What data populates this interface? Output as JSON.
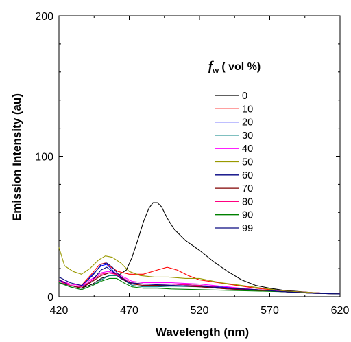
{
  "chart_data": {
    "type": "line",
    "xlabel": "Wavelength (nm)",
    "ylabel": "Emission Intensity (au)",
    "xlim": [
      420,
      620
    ],
    "ylim": [
      0,
      200
    ],
    "x_ticks": [
      420,
      470,
      520,
      570,
      620
    ],
    "y_ticks": [
      0,
      100,
      200
    ],
    "grid": false,
    "legend_position": "right",
    "legend": {
      "title_f": "f",
      "title_sub": "w",
      "title_rest": " ( vol %)"
    },
    "series": [
      {
        "name": "0",
        "color": "#000000",
        "points": [
          [
            420,
            10
          ],
          [
            428,
            8
          ],
          [
            436,
            6
          ],
          [
            444,
            9
          ],
          [
            450,
            13
          ],
          [
            456,
            15
          ],
          [
            462,
            15
          ],
          [
            468,
            19
          ],
          [
            472,
            28
          ],
          [
            476,
            40
          ],
          [
            480,
            53
          ],
          [
            484,
            63
          ],
          [
            487,
            67
          ],
          [
            490,
            67
          ],
          [
            493,
            64
          ],
          [
            497,
            56
          ],
          [
            502,
            48
          ],
          [
            510,
            40
          ],
          [
            520,
            33
          ],
          [
            530,
            25
          ],
          [
            540,
            18
          ],
          [
            550,
            12
          ],
          [
            560,
            8
          ],
          [
            570,
            6
          ],
          [
            580,
            4.5
          ],
          [
            600,
            3
          ],
          [
            620,
            2
          ]
        ]
      },
      {
        "name": "10",
        "color": "#ff0000",
        "points": [
          [
            420,
            12
          ],
          [
            428,
            9
          ],
          [
            436,
            8
          ],
          [
            444,
            17
          ],
          [
            449,
            23
          ],
          [
            453,
            24
          ],
          [
            457,
            21
          ],
          [
            462,
            18
          ],
          [
            470,
            16
          ],
          [
            480,
            16
          ],
          [
            490,
            19
          ],
          [
            497,
            21
          ],
          [
            504,
            19
          ],
          [
            512,
            15
          ],
          [
            520,
            12
          ],
          [
            540,
            9
          ],
          [
            560,
            6
          ],
          [
            580,
            4
          ],
          [
            600,
            3
          ],
          [
            620,
            2
          ]
        ]
      },
      {
        "name": "20",
        "color": "#0000ff",
        "points": [
          [
            420,
            12
          ],
          [
            428,
            8
          ],
          [
            436,
            7
          ],
          [
            444,
            16
          ],
          [
            450,
            22
          ],
          [
            454,
            23
          ],
          [
            458,
            19
          ],
          [
            464,
            13
          ],
          [
            470,
            10
          ],
          [
            480,
            9
          ],
          [
            490,
            9
          ],
          [
            500,
            9
          ],
          [
            520,
            8
          ],
          [
            540,
            6.5
          ],
          [
            560,
            5
          ],
          [
            580,
            3.5
          ],
          [
            600,
            3
          ],
          [
            620,
            2
          ]
        ]
      },
      {
        "name": "30",
        "color": "#008080",
        "points": [
          [
            420,
            10
          ],
          [
            428,
            7
          ],
          [
            436,
            5
          ],
          [
            444,
            8
          ],
          [
            450,
            12
          ],
          [
            456,
            15
          ],
          [
            461,
            15
          ],
          [
            466,
            12
          ],
          [
            472,
            8
          ],
          [
            480,
            7
          ],
          [
            490,
            7
          ],
          [
            500,
            7.5
          ],
          [
            520,
            7
          ],
          [
            540,
            5.5
          ],
          [
            560,
            4.5
          ],
          [
            580,
            3.5
          ],
          [
            600,
            2.5
          ],
          [
            620,
            2
          ]
        ]
      },
      {
        "name": "40",
        "color": "#ff00ff",
        "points": [
          [
            420,
            12
          ],
          [
            428,
            9
          ],
          [
            436,
            8
          ],
          [
            444,
            13
          ],
          [
            450,
            17
          ],
          [
            455,
            18
          ],
          [
            460,
            17
          ],
          [
            466,
            14
          ],
          [
            472,
            11
          ],
          [
            480,
            10
          ],
          [
            490,
            10
          ],
          [
            500,
            10
          ],
          [
            520,
            9
          ],
          [
            540,
            7
          ],
          [
            560,
            5
          ],
          [
            580,
            4
          ],
          [
            600,
            3
          ],
          [
            620,
            2
          ]
        ]
      },
      {
        "name": "50",
        "color": "#999900",
        "points": [
          [
            420,
            35
          ],
          [
            424,
            22
          ],
          [
            430,
            18
          ],
          [
            436,
            16
          ],
          [
            442,
            20
          ],
          [
            448,
            26
          ],
          [
            453,
            29
          ],
          [
            458,
            28
          ],
          [
            464,
            24
          ],
          [
            470,
            18
          ],
          [
            478,
            15
          ],
          [
            488,
            14
          ],
          [
            498,
            14
          ],
          [
            510,
            13
          ],
          [
            520,
            13
          ],
          [
            535,
            10
          ],
          [
            550,
            8
          ],
          [
            565,
            6
          ],
          [
            580,
            4
          ],
          [
            600,
            3
          ],
          [
            620,
            2
          ]
        ]
      },
      {
        "name": "60",
        "color": "#000080",
        "points": [
          [
            420,
            12
          ],
          [
            428,
            8
          ],
          [
            436,
            6
          ],
          [
            444,
            12
          ],
          [
            450,
            19
          ],
          [
            454,
            21
          ],
          [
            458,
            18
          ],
          [
            464,
            13
          ],
          [
            470,
            10
          ],
          [
            480,
            9
          ],
          [
            490,
            9
          ],
          [
            500,
            9
          ],
          [
            520,
            8
          ],
          [
            540,
            6
          ],
          [
            560,
            5
          ],
          [
            580,
            3.5
          ],
          [
            600,
            2.5
          ],
          [
            620,
            2
          ]
        ]
      },
      {
        "name": "70",
        "color": "#800000",
        "points": [
          [
            420,
            11
          ],
          [
            428,
            8
          ],
          [
            436,
            6
          ],
          [
            444,
            11
          ],
          [
            450,
            15
          ],
          [
            456,
            17
          ],
          [
            461,
            16
          ],
          [
            466,
            12
          ],
          [
            472,
            9
          ],
          [
            480,
            8
          ],
          [
            490,
            8
          ],
          [
            500,
            8
          ],
          [
            520,
            7
          ],
          [
            540,
            5.5
          ],
          [
            560,
            4.5
          ],
          [
            580,
            3.5
          ],
          [
            600,
            2.5
          ],
          [
            620,
            2
          ]
        ]
      },
      {
        "name": "80",
        "color": "#ff0080",
        "points": [
          [
            420,
            11
          ],
          [
            428,
            8
          ],
          [
            436,
            7
          ],
          [
            444,
            12
          ],
          [
            450,
            16
          ],
          [
            455,
            17
          ],
          [
            460,
            16
          ],
          [
            466,
            13
          ],
          [
            472,
            10
          ],
          [
            480,
            9
          ],
          [
            490,
            9
          ],
          [
            500,
            9
          ],
          [
            520,
            8
          ],
          [
            540,
            6
          ],
          [
            560,
            5
          ],
          [
            580,
            3.5
          ],
          [
            600,
            2.5
          ],
          [
            620,
            2
          ]
        ]
      },
      {
        "name": "90",
        "color": "#008000",
        "points": [
          [
            420,
            10
          ],
          [
            428,
            7
          ],
          [
            436,
            5
          ],
          [
            444,
            8
          ],
          [
            450,
            11
          ],
          [
            456,
            13
          ],
          [
            461,
            13
          ],
          [
            466,
            10
          ],
          [
            472,
            7
          ],
          [
            480,
            6
          ],
          [
            490,
            6
          ],
          [
            500,
            5.5
          ],
          [
            520,
            5
          ],
          [
            540,
            4.5
          ],
          [
            560,
            4
          ],
          [
            580,
            3.5
          ],
          [
            600,
            2.5
          ],
          [
            620,
            2
          ]
        ]
      },
      {
        "name": "99",
        "color": "#0a0a80",
        "points": [
          [
            420,
            14
          ],
          [
            428,
            10
          ],
          [
            436,
            8
          ],
          [
            444,
            15
          ],
          [
            450,
            23
          ],
          [
            454,
            24
          ],
          [
            458,
            21
          ],
          [
            464,
            14
          ],
          [
            470,
            10
          ],
          [
            480,
            9
          ],
          [
            490,
            8.5
          ],
          [
            500,
            8
          ],
          [
            520,
            7.5
          ],
          [
            540,
            6
          ],
          [
            560,
            5
          ],
          [
            580,
            3.5
          ],
          [
            600,
            2.5
          ],
          [
            620,
            2
          ]
        ]
      }
    ]
  }
}
